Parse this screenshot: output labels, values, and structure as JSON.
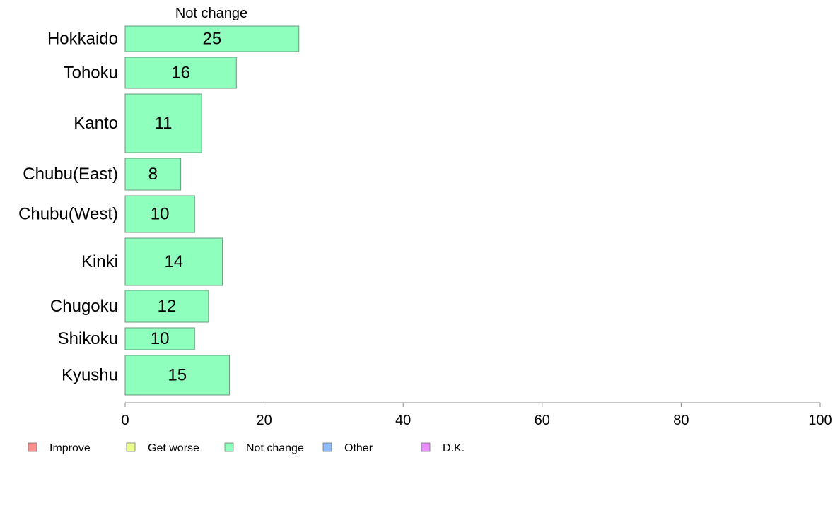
{
  "chart_data": {
    "type": "bar",
    "orientation": "horizontal",
    "categories": [
      "Hokkaido",
      "Tohoku",
      "Kanto",
      "Chubu(East)",
      "Chubu(West)",
      "Kinki",
      "Chugoku",
      "Shikoku",
      "Kyushu"
    ],
    "series": [
      {
        "name": "Not change",
        "color": "#8effbc",
        "values": [
          25,
          16,
          11,
          8,
          10,
          14,
          12,
          10,
          15
        ],
        "labels": [
          "25",
          "16",
          "11",
          "8",
          "10",
          "14",
          "12",
          "10",
          "15"
        ]
      }
    ],
    "xlim": [
      0,
      100
    ],
    "xticks": [
      0,
      20,
      40,
      60,
      80,
      100
    ],
    "grid": false,
    "legend": {
      "placement": "bottom",
      "entries": [
        {
          "name": "Improve",
          "color": "#ff8e8e"
        },
        {
          "name": "Get worse",
          "color": "#eaff8e"
        },
        {
          "name": "Not change",
          "color": "#8effbc"
        },
        {
          "name": "Other",
          "color": "#8ebcff"
        },
        {
          "name": "D.K.",
          "color": "#ea8eff"
        }
      ]
    }
  }
}
